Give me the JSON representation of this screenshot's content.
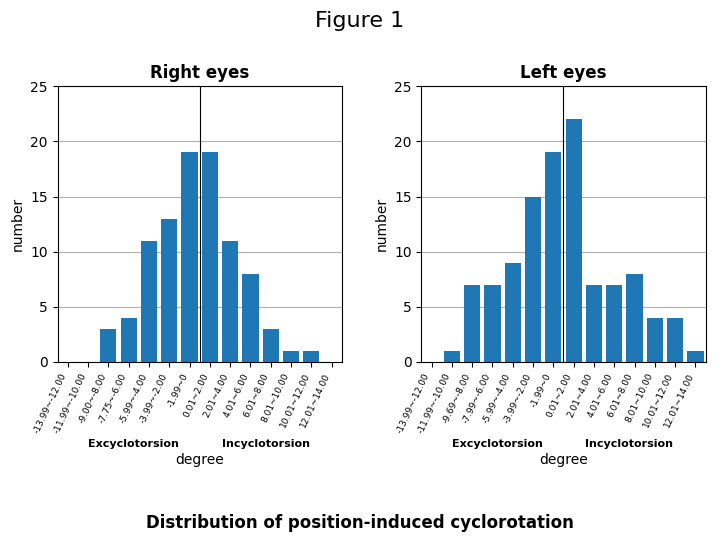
{
  "title": "Figure 1",
  "subtitle": "Distribution of position-induced cyclorotation",
  "chart_data": [
    {
      "type": "bar",
      "title": "Right eyes",
      "categories": [
        "-13.99~-12.00",
        "-11.99~-10.00",
        "-9.00~-8.00",
        "-7.75~-6.00",
        "-5.99~-4.00",
        "-3.99~-2.00",
        "-1.99~0",
        "0.01~2.00",
        "2.01~4.00",
        "4.01~6.00",
        "6.01~8.00",
        "8.01~10.00",
        "10.01~12.00",
        "12.01~14.00"
      ],
      "values": [
        0,
        0,
        3,
        4,
        11,
        13,
        19,
        19,
        11,
        8,
        3,
        1,
        1,
        0
      ],
      "ylim": [
        0,
        25
      ],
      "yticks": [
        0,
        5,
        10,
        15,
        20,
        25
      ],
      "ylabel": "number",
      "xlabel": "degree",
      "annotations": [
        "Excyclotorsion",
        "Incyclotorsion"
      ],
      "grid": true
    },
    {
      "type": "bar",
      "title": "Left eyes",
      "categories": [
        "-13.99~-12.00",
        "-11.99~-10.00",
        "-9.69~-8.00",
        "-7.99~-6.00",
        "-5.99~-4.00",
        "-3.99~-2.00",
        "-1.99~0",
        "0.01~2.00",
        "2.01~4.00",
        "4.01~6.00",
        "6.01~8.00",
        "8.01~10.00",
        "10.01~12.00",
        "12.01~14.00"
      ],
      "values": [
        0,
        1,
        7,
        7,
        9,
        15,
        19,
        22,
        7,
        7,
        8,
        4,
        4,
        1
      ],
      "ylim": [
        0,
        25
      ],
      "yticks": [
        0,
        5,
        10,
        15,
        20,
        25
      ],
      "ylabel": "number",
      "xlabel": "degree",
      "annotations": [
        "Excyclotorsion",
        "Incyclotorsion"
      ],
      "grid": true
    }
  ]
}
